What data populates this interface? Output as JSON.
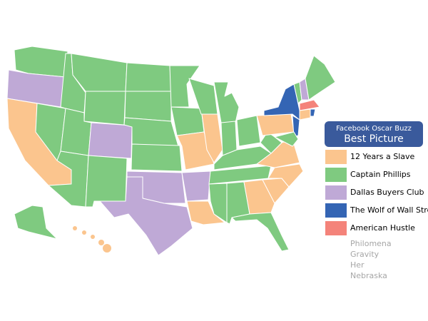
{
  "header": {
    "subtitle": "Facebook Oscar Buzz",
    "title": "Best Picture"
  },
  "legend": {
    "items": [
      {
        "label": "12 Years a Slave",
        "color": "#fbc58e"
      },
      {
        "label": "Captain Phillips",
        "color": "#7fca80"
      },
      {
        "label": "Dallas Buyers Club",
        "color": "#bfa9d6"
      },
      {
        "label": "The Wolf of Wall Street",
        "color": "#3465b4"
      },
      {
        "label": "American Hustle",
        "color": "#f4837a"
      }
    ]
  },
  "others": [
    "Philomena",
    "Gravity",
    "Her",
    "Nebraska"
  ]
}
